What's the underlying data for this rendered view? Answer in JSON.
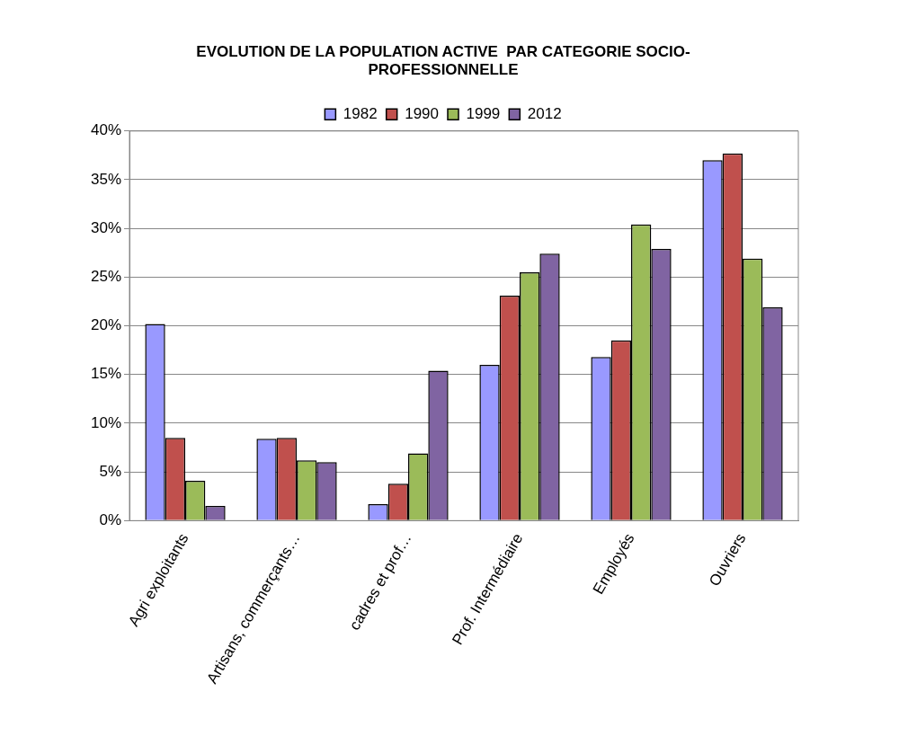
{
  "chart_data": {
    "type": "bar",
    "title": [
      "EVOLUTION DE LA POPULATION ACTIVE  PAR CATEGORIE SOCIO-",
      "PROFESSIONNELLE"
    ],
    "categories": [
      "Agri exploitants",
      "Artisans, commerçants…",
      "cadres et prof…",
      "Prof. Intermédiaire",
      "Employés",
      "Ouvriers"
    ],
    "series": [
      {
        "name": "1982",
        "color": "#9999ff",
        "values": [
          20.2,
          8.4,
          1.7,
          16.0,
          16.8,
          37.0
        ]
      },
      {
        "name": "1990",
        "color": "#c0504d",
        "values": [
          8.5,
          8.5,
          3.8,
          23.1,
          18.5,
          37.7
        ]
      },
      {
        "name": "1999",
        "color": "#9bbb59",
        "values": [
          4.1,
          6.2,
          6.9,
          25.5,
          30.4,
          26.9
        ]
      },
      {
        "name": "2012",
        "color": "#8064a2",
        "values": [
          1.5,
          6.0,
          15.4,
          27.4,
          27.9,
          21.9
        ]
      }
    ],
    "ylim": [
      0,
      40
    ],
    "yticks": [
      {
        "value": 0,
        "label": "0%"
      },
      {
        "value": 5,
        "label": "5%"
      },
      {
        "value": 10,
        "label": "10%"
      },
      {
        "value": 15,
        "label": "15%"
      },
      {
        "value": 20,
        "label": "20%"
      },
      {
        "value": 25,
        "label": "25%"
      },
      {
        "value": 30,
        "label": "30%"
      },
      {
        "value": 35,
        "label": "35%"
      },
      {
        "value": 40,
        "label": "40%"
      }
    ],
    "grid": "y",
    "legend": "top"
  }
}
